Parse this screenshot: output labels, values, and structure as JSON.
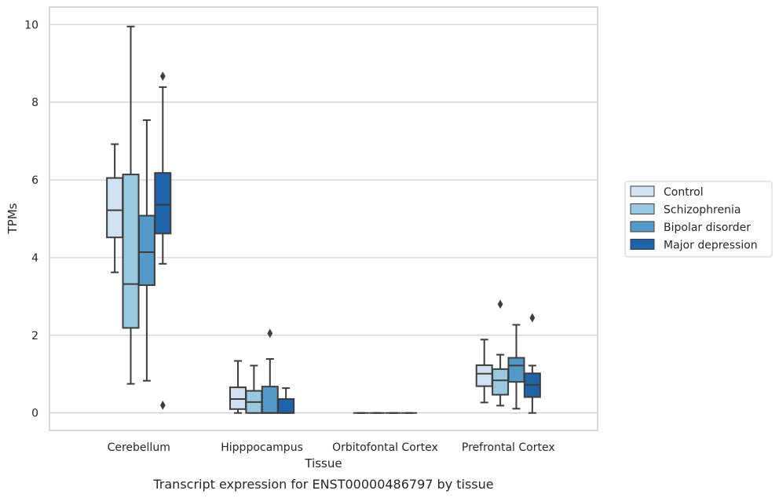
{
  "chart_data": {
    "type": "box",
    "title": "Transcript expression for ENST00000486797 by tissue",
    "xlabel": "Tissue",
    "ylabel": "TPMs",
    "ylim": [
      -0.45,
      10.45
    ],
    "yticks": [
      0,
      2,
      4,
      6,
      8,
      10
    ],
    "grid": "horizontal",
    "legend_position": "right",
    "categories": [
      "Cerebellum",
      "Hipppocampus",
      "Orbitofontal Cortex",
      "Prefrontal Cortex"
    ],
    "series": [
      {
        "name": "Control",
        "color": "#d0e1f2",
        "boxes": [
          {
            "whislo": 3.62,
            "q1": 4.52,
            "med": 5.22,
            "q3": 6.05,
            "whishi": 6.92,
            "fliers": []
          },
          {
            "whislo": 0.0,
            "q1": 0.1,
            "med": 0.36,
            "q3": 0.66,
            "whishi": 1.34,
            "fliers": []
          },
          {
            "whislo": 0,
            "q1": 0,
            "med": 0,
            "q3": 0,
            "whishi": 0,
            "fliers": []
          },
          {
            "whislo": 0.27,
            "q1": 0.69,
            "med": 1.01,
            "q3": 1.23,
            "whishi": 1.89,
            "fliers": []
          }
        ]
      },
      {
        "name": "Schizophrenia",
        "color": "#9ac8e0",
        "boxes": [
          {
            "whislo": 0.75,
            "q1": 2.19,
            "med": 3.32,
            "q3": 6.14,
            "whishi": 9.95,
            "fliers": []
          },
          {
            "whislo": 0.0,
            "q1": 0.0,
            "med": 0.28,
            "q3": 0.57,
            "whishi": 1.22,
            "fliers": []
          },
          {
            "whislo": 0,
            "q1": 0,
            "med": 0,
            "q3": 0,
            "whishi": 0,
            "fliers": []
          },
          {
            "whislo": 0.19,
            "q1": 0.47,
            "med": 0.84,
            "q3": 1.13,
            "whishi": 1.5,
            "fliers": [
              2.8
            ]
          }
        ]
      },
      {
        "name": "Bipolar disorder",
        "color": "#5599c8",
        "boxes": [
          {
            "whislo": 0.83,
            "q1": 3.29,
            "med": 4.14,
            "q3": 5.08,
            "whishi": 7.54,
            "fliers": []
          },
          {
            "whislo": 0.0,
            "q1": 0.0,
            "med": 0.0,
            "q3": 0.68,
            "whishi": 1.39,
            "fliers": [
              2.05
            ]
          },
          {
            "whislo": 0,
            "q1": 0,
            "med": 0,
            "q3": 0,
            "whishi": 0,
            "fliers": []
          },
          {
            "whislo": 0.11,
            "q1": 0.8,
            "med": 1.22,
            "q3": 1.42,
            "whishi": 2.27,
            "fliers": []
          }
        ]
      },
      {
        "name": "Major depression",
        "color": "#1f63a8",
        "boxes": [
          {
            "whislo": 3.84,
            "q1": 4.62,
            "med": 5.36,
            "q3": 6.18,
            "whishi": 8.39,
            "fliers": [
              8.67,
              0.2
            ]
          },
          {
            "whislo": 0.0,
            "q1": 0.0,
            "med": 0.0,
            "q3": 0.36,
            "whishi": 0.64,
            "fliers": []
          },
          {
            "whislo": 0,
            "q1": 0,
            "med": 0,
            "q3": 0,
            "whishi": 0,
            "fliers": []
          },
          {
            "whislo": 0.0,
            "q1": 0.41,
            "med": 0.72,
            "q3": 1.02,
            "whishi": 1.22,
            "fliers": [
              2.45
            ]
          }
        ]
      }
    ]
  }
}
